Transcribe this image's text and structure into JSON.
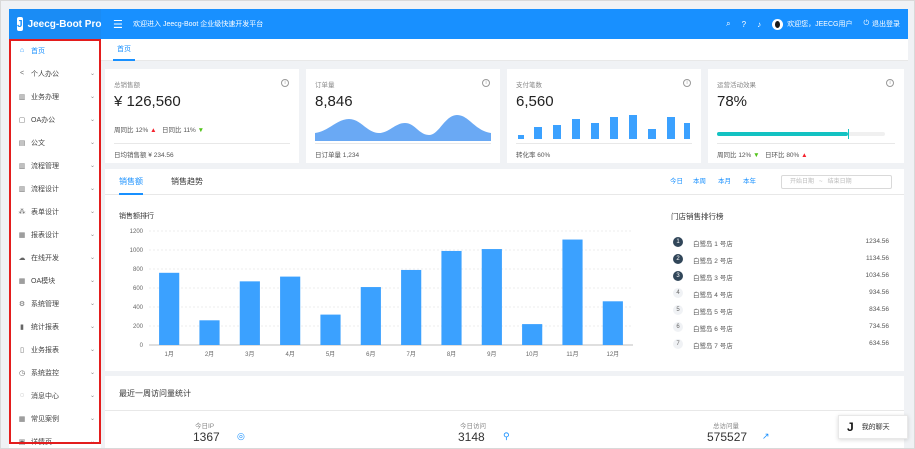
{
  "header": {
    "logo_text": "Jeecg-Boot Pro",
    "welcome": "欢迎进入 Jeecg-Boot 企业级快速开发平台",
    "user_label": "欢迎您，JEECG用户",
    "logout_label": "退出登录"
  },
  "sidebar": {
    "items": [
      {
        "label": "首页",
        "icon": "home-icon"
      },
      {
        "label": "个人办公",
        "icon": "share-icon"
      },
      {
        "label": "业务办理",
        "icon": "bank-icon"
      },
      {
        "label": "OA办公",
        "icon": "doc-icon"
      },
      {
        "label": "公文",
        "icon": "file-icon"
      },
      {
        "label": "流程管理",
        "icon": "bank-icon"
      },
      {
        "label": "流程设计",
        "icon": "bank-icon"
      },
      {
        "label": "表单设计",
        "icon": "cluster-icon"
      },
      {
        "label": "报表设计",
        "icon": "chart-icon"
      },
      {
        "label": "在线开发",
        "icon": "cloud-icon"
      },
      {
        "label": "OA模块",
        "icon": "table-icon"
      },
      {
        "label": "系统管理",
        "icon": "setting-icon"
      },
      {
        "label": "统计报表",
        "icon": "bar-icon"
      },
      {
        "label": "业务报表",
        "icon": "fund-icon"
      },
      {
        "label": "系统监控",
        "icon": "monitor-icon"
      },
      {
        "label": "消息中心",
        "icon": "message-icon"
      },
      {
        "label": "常见案例",
        "icon": "table-icon"
      },
      {
        "label": "详情页",
        "icon": "profile-icon"
      }
    ]
  },
  "tabs": {
    "home": "首页"
  },
  "kpis": [
    {
      "title": "总销售额",
      "value": "¥ 126,560",
      "week_label": "周同比",
      "week_value": "12%",
      "day_label": "日同比",
      "day_value": "11%",
      "footer": "日均销售额 ¥ 234.56"
    },
    {
      "title": "订单量",
      "value": "8,846",
      "footer": "日订单量 1,234"
    },
    {
      "title": "支付笔数",
      "value": "6,560",
      "footer": "转化率 60%"
    },
    {
      "title": "运营活动效果",
      "value": "78%",
      "progress": 0.78,
      "week_label": "周同比",
      "week_value": "12%",
      "day_label": "日环比",
      "day_value": "80%"
    }
  ],
  "sales": {
    "tab_sales": "销售额",
    "tab_trend": "销售趋势",
    "periods": [
      "今日",
      "本周",
      "本月",
      "本年"
    ],
    "start_placeholder": "开始日期",
    "end_placeholder": "结束日期",
    "range_sep": "~",
    "rank_title": "门店销售排行榜",
    "rank": [
      {
        "name": "白鹭岛 1 号店",
        "value": "1234.56"
      },
      {
        "name": "白鹭岛 2 号店",
        "value": "1134.56"
      },
      {
        "name": "白鹭岛 3 号店",
        "value": "1034.56"
      },
      {
        "name": "白鹭岛 4 号店",
        "value": "934.56"
      },
      {
        "name": "白鹭岛 5 号店",
        "value": "834.56"
      },
      {
        "name": "白鹭岛 6 号店",
        "value": "734.56"
      },
      {
        "name": "白鹭岛 7 号店",
        "value": "634.56"
      }
    ]
  },
  "chart_data": {
    "type": "bar",
    "title": "销售额排行",
    "categories": [
      "1月",
      "2月",
      "3月",
      "4月",
      "5月",
      "6月",
      "7月",
      "8月",
      "9月",
      "10月",
      "11月",
      "12月"
    ],
    "values": [
      760,
      260,
      670,
      720,
      320,
      610,
      790,
      990,
      1010,
      220,
      1110,
      460
    ],
    "yticks": [
      0,
      200,
      400,
      600,
      800,
      1000,
      1200
    ],
    "ylim": [
      0,
      1200
    ],
    "color": "#3ba1ff",
    "grid": true
  },
  "visits": {
    "title": "最近一周访问量统计",
    "stats": [
      {
        "label": "今日IP",
        "value": "1367",
        "icon": "environment-icon"
      },
      {
        "label": "今日访问",
        "value": "3148",
        "icon": "team-icon"
      },
      {
        "label": "总访问量",
        "value": "575527",
        "icon": "rise-icon"
      }
    ]
  },
  "chat": {
    "label": "我的聊天"
  },
  "colors": {
    "primary": "#1890ff",
    "area": "#6aa9f4",
    "bar": "#3ba1ff",
    "progress": "#13c2c2"
  }
}
